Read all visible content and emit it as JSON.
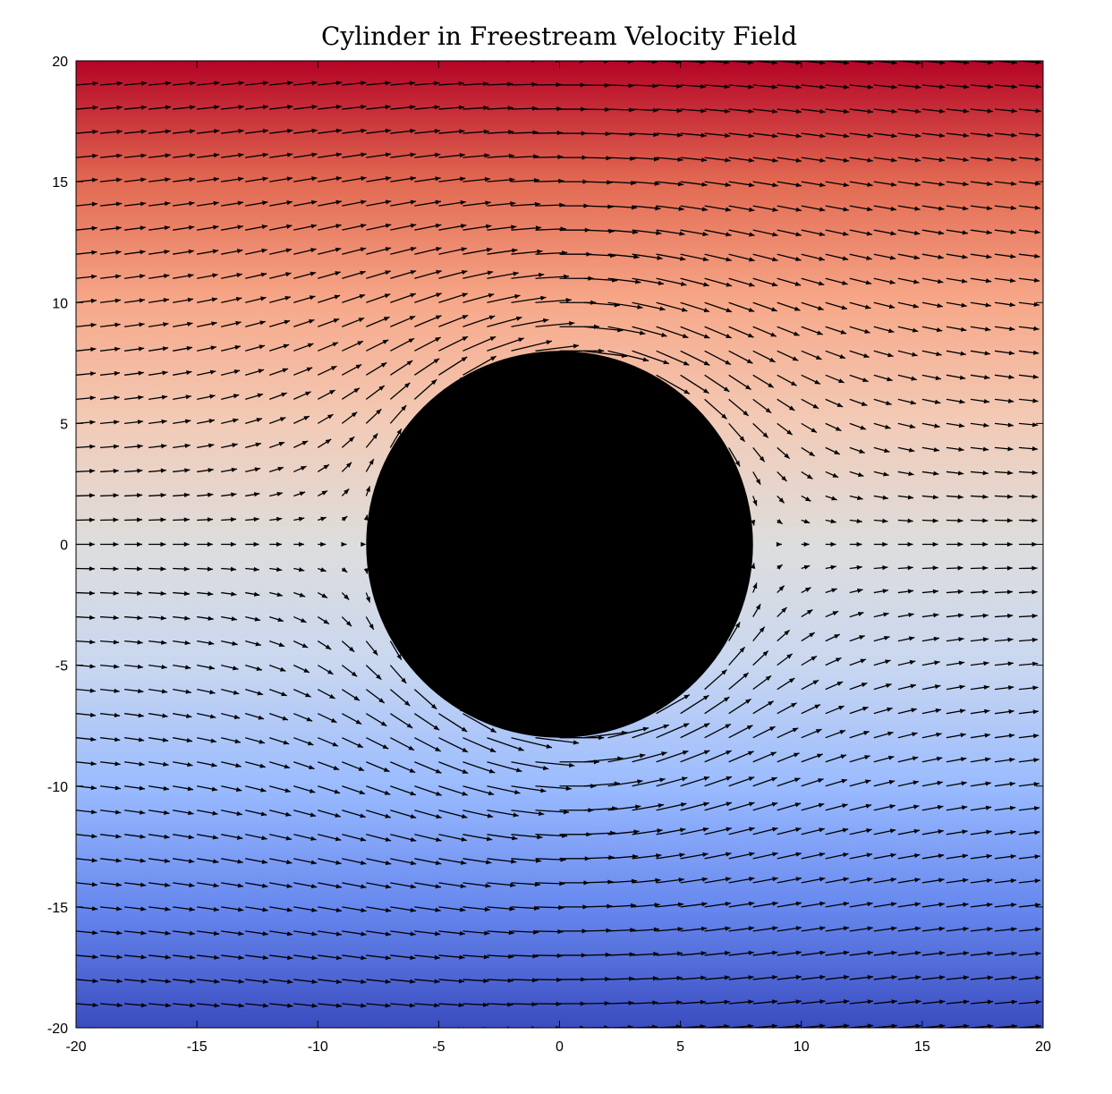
{
  "chart_data": {
    "type": "quiver",
    "title": "Cylinder in Freestream Velocity Field",
    "xlabel": "",
    "ylabel": "",
    "xlim": [
      -20,
      20
    ],
    "ylim": [
      -20,
      20
    ],
    "xticks": [
      -20,
      -15,
      -10,
      -5,
      0,
      5,
      10,
      15,
      20
    ],
    "yticks": [
      -20,
      -15,
      -10,
      -5,
      0,
      5,
      10,
      15,
      20
    ],
    "cylinder": {
      "center": [
        0,
        0
      ],
      "radius": 8,
      "color": "#000000"
    },
    "freestream_velocity": 1,
    "grid_spacing": 1,
    "arrow_color": "#000000",
    "colormap": [
      "#3b4cc0",
      "#6788ee",
      "#9abbff",
      "#c9d7f0",
      "#dddddd",
      "#f2cbb7",
      "#f7a889",
      "#e26952",
      "#b40426"
    ],
    "grid": false,
    "legend": "none"
  }
}
